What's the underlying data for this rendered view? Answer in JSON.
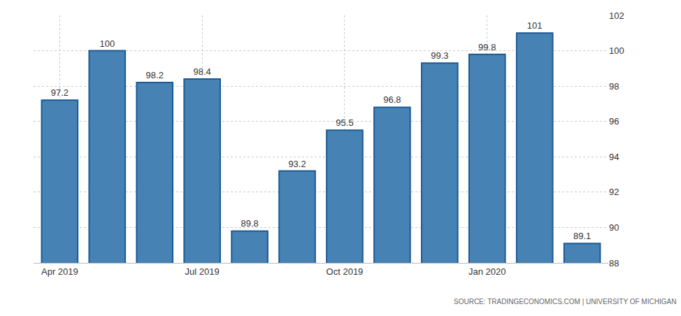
{
  "chart_data": {
    "type": "bar",
    "categories": [
      "Apr 2019",
      null,
      null,
      "Jul 2019",
      null,
      null,
      "Oct 2019",
      null,
      null,
      "Jan 2020",
      null,
      null
    ],
    "values": [
      97.2,
      100,
      98.2,
      98.4,
      89.8,
      93.2,
      95.5,
      96.8,
      99.3,
      99.8,
      101,
      89.1
    ],
    "color": "#4682b4",
    "ylim": [
      88,
      102
    ],
    "yticks": [
      88,
      90,
      92,
      94,
      96,
      98,
      100,
      102
    ],
    "grid": true,
    "data_labels": true,
    "annotations": [
      "SOURCE: TRADINGECONOMICS.COM | UNIVERSITY OF MICHIGAN"
    ]
  }
}
